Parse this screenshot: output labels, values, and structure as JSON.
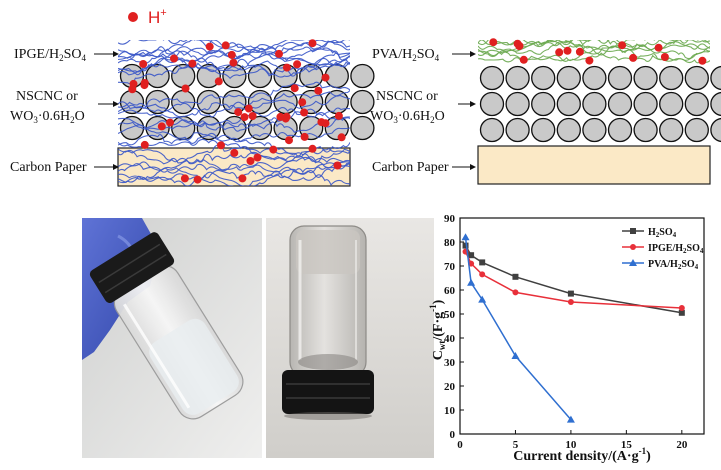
{
  "legend_top": {
    "proton_label": "H",
    "proton_sup": "+"
  },
  "left_diagram": {
    "electrolyte": {
      "base": "IPGE/H",
      "sub1": "2",
      "mid": "SO",
      "sub2": "4"
    },
    "electrode_line1": "NSCNC or",
    "electrode_line2": {
      "base": "WO",
      "sub1": "3",
      "rest": "·0.6H",
      "sub2": "2",
      "end": "O"
    },
    "substrate": "Carbon Paper"
  },
  "right_diagram": {
    "electrolyte": {
      "base": "PVA/H",
      "sub1": "2",
      "mid": "SO",
      "sub2": "4"
    },
    "electrode_line1": "NSCNC or",
    "electrode_line2": {
      "base": "WO",
      "sub1": "3",
      "rest": "·0.6H",
      "sub2": "2",
      "end": "O"
    },
    "substrate": "Carbon Paper"
  },
  "colors": {
    "proton": "#e02020",
    "fiber_blue": "#3a56c8",
    "fiber_green": "#6aa84f",
    "particle_fill": "#c9c9c9",
    "paper": "#fbe9c6",
    "h2so4": "#404040",
    "ipge": "#e8303a",
    "pva": "#2f6fd0"
  },
  "chart_data": {
    "type": "line",
    "xlabel": "Current density/(A·g⁻¹)",
    "ylabel": "Cwt/(F·g⁻¹)",
    "xlim": [
      0,
      22
    ],
    "ylim": [
      0,
      90
    ],
    "xticks": [
      0,
      5,
      10,
      15,
      20
    ],
    "yticks": [
      0,
      10,
      20,
      30,
      40,
      50,
      60,
      70,
      80,
      90
    ],
    "series": [
      {
        "name": "H2SO4",
        "x": [
          0.5,
          1,
          2,
          5,
          10,
          20
        ],
        "y": [
          78.5,
          74.5,
          71.5,
          65.5,
          58.5,
          50.5
        ]
      },
      {
        "name": "IPGE/H2SO4",
        "x": [
          0.5,
          1,
          2,
          5,
          10,
          20
        ],
        "y": [
          76,
          71,
          66.5,
          59,
          55,
          52.5
        ]
      },
      {
        "name": "PVA/H2SO4",
        "x": [
          0.5,
          1,
          2,
          5,
          10
        ],
        "y": [
          82,
          63,
          56,
          32.5,
          6
        ]
      }
    ],
    "legend": [
      {
        "base": "H",
        "sub1": "2",
        "mid": "SO",
        "sub2": "4"
      },
      {
        "base": "IPGE/H",
        "sub1": "2",
        "mid": "SO",
        "sub2": "4"
      },
      {
        "base": "PVA/H",
        "sub1": "2",
        "mid": "SO",
        "sub2": "4"
      }
    ],
    "legend_position": "top-right",
    "grid": false
  }
}
